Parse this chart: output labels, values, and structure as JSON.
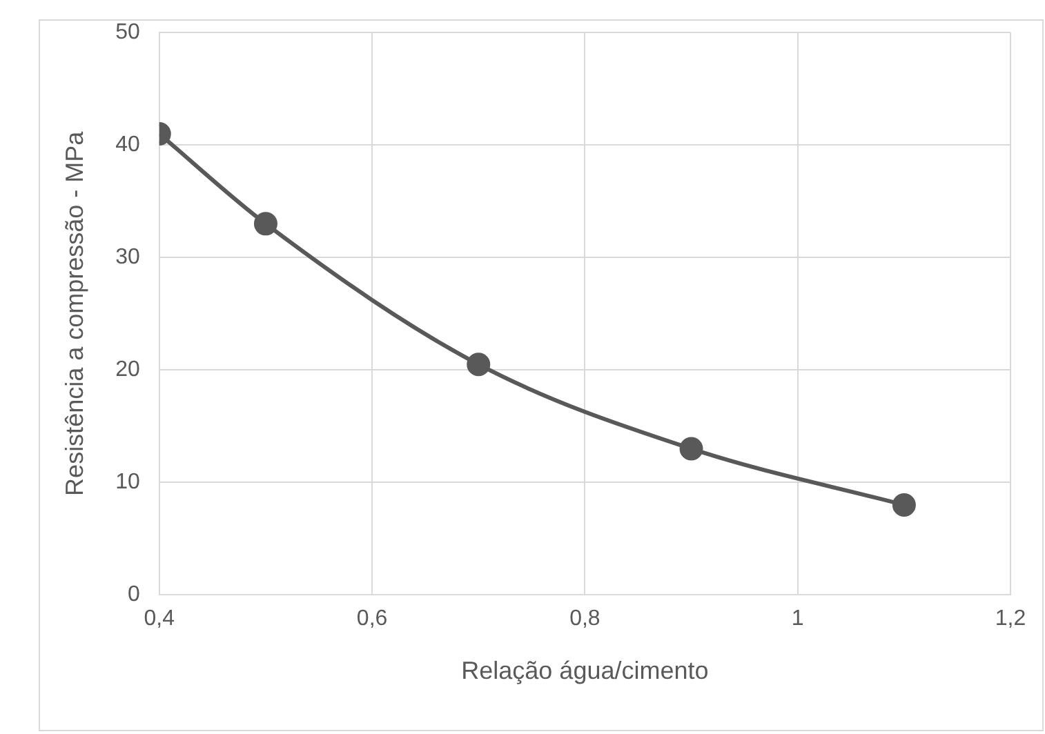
{
  "chart_data": {
    "type": "line",
    "xlabel": "Relação água/cimento",
    "ylabel": "Resistência a compressão - MPa",
    "x": [
      0.4,
      0.5,
      0.7,
      0.9,
      1.1
    ],
    "series": [
      {
        "color": "#595959",
        "values": [
          41,
          33,
          20.5,
          13,
          8
        ]
      }
    ],
    "xlim": [
      0.4,
      1.2
    ],
    "xticks": [
      {
        "value": 0.4,
        "label": "0,4"
      },
      {
        "value": 0.6,
        "label": "0,6"
      },
      {
        "value": 0.8,
        "label": "0,8"
      },
      {
        "value": 1,
        "label": "1"
      },
      {
        "value": 1.2,
        "label": "1,2"
      }
    ],
    "ylim": [
      0,
      50
    ],
    "yticks": [
      0,
      10,
      20,
      30,
      40,
      50
    ],
    "grid": true,
    "legend": false,
    "marker": "circle",
    "line_style": "solid"
  }
}
